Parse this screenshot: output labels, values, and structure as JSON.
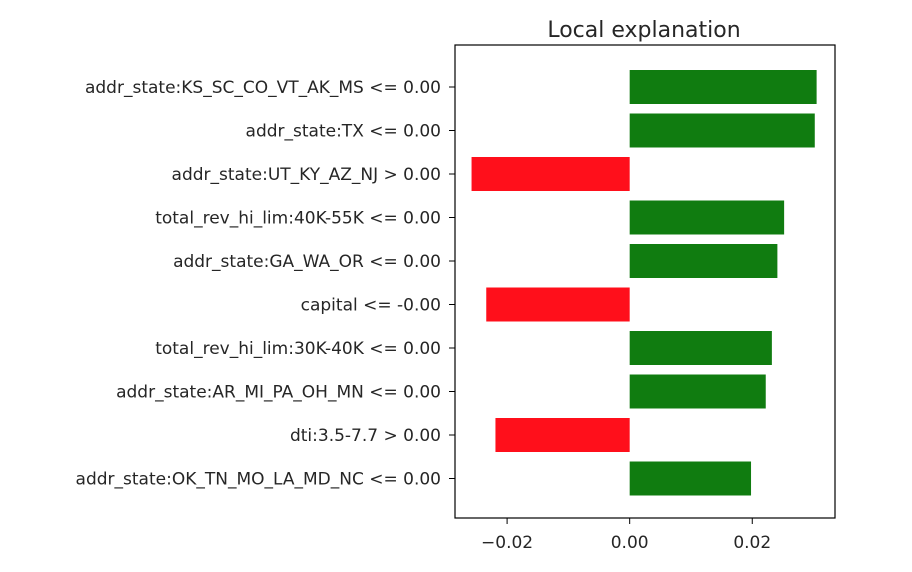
{
  "chart_data": {
    "type": "bar",
    "orientation": "horizontal",
    "title": "Local explanation",
    "xlabel": "",
    "ylabel": "",
    "xlim": [
      -0.0285,
      0.0335
    ],
    "xticks": [
      -0.02,
      0.0,
      0.02
    ],
    "xtick_labels": [
      "−0.02",
      "0.00",
      "0.02"
    ],
    "grid": false,
    "legend": "none",
    "positive_color": "#107c10",
    "negative_color": "#ff0f1b",
    "categories": [
      "addr_state:KS_SC_CO_VT_AK_MS <= 0.00",
      "addr_state:TX <= 0.00",
      "addr_state:UT_KY_AZ_NJ > 0.00",
      "total_rev_hi_lim:40K-55K <= 0.00",
      "addr_state:GA_WA_OR <= 0.00",
      "capital <= -0.00",
      "total_rev_hi_lim:30K-40K <= 0.00",
      "addr_state:AR_MI_PA_OH_MN <= 0.00",
      "dti:3.5-7.7 > 0.00",
      "addr_state:OK_TN_MO_LA_MD_NC <= 0.00"
    ],
    "values": [
      0.0305,
      0.0302,
      -0.0258,
      0.0252,
      0.0241,
      -0.0234,
      0.0232,
      0.0222,
      -0.0219,
      0.0198
    ]
  }
}
